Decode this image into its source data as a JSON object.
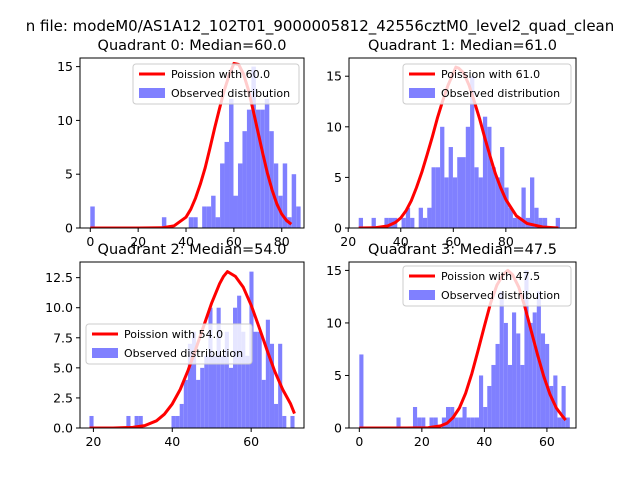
{
  "suptitle": "n file: modeM0/AS1A12_102T01_9000005812_42556cztM0_level2_quad_clean",
  "colors": {
    "poisson": "#ff0000",
    "observed": "#8080ff",
    "axis": "#000000"
  },
  "chart_data": [
    {
      "type": "bar",
      "title": "Quadrant 0: Median=60.0",
      "xlabel": "",
      "ylabel": "",
      "xlim": [
        -4.3,
        89.3
      ],
      "ylim": [
        0,
        15.8
      ],
      "xticks": [
        0,
        20,
        40,
        60,
        80
      ],
      "yticks": [
        0,
        5,
        10,
        15
      ],
      "legend": {
        "placement": "upper-right",
        "entries": [
          "Poission with 60.0",
          "Observed distribution"
        ]
      },
      "bins": {
        "start": 0,
        "width": 1.87
      },
      "series": [
        {
          "name": "Observed distribution",
          "kind": "histogram",
          "values": [
            2,
            0,
            0,
            0,
            0,
            0,
            0,
            0,
            0,
            0,
            0,
            0,
            0,
            0,
            0,
            0,
            1,
            0,
            0,
            0,
            0,
            0,
            1,
            1,
            0,
            2,
            2,
            3,
            1,
            6,
            8,
            12,
            3,
            6,
            9,
            11,
            15,
            11,
            11,
            12,
            9,
            6,
            3,
            6,
            1,
            5,
            2,
            0,
            1,
            1,
            1
          ]
        },
        {
          "name": "Poission with 60.0",
          "kind": "line",
          "x": [
            0,
            10,
            20,
            30,
            35,
            40,
            42,
            44,
            46,
            48,
            50,
            52,
            54,
            56,
            58,
            60,
            62,
            64,
            66,
            68,
            70,
            72,
            74,
            76,
            78,
            80,
            82,
            84
          ],
          "y": [
            0,
            0,
            0,
            0.02,
            0.2,
            1.0,
            1.75,
            2.8,
            4.1,
            5.6,
            7.4,
            9.3,
            11.1,
            12.8,
            14.2,
            15.3,
            15.2,
            14.3,
            12.9,
            11.0,
            9.0,
            7.0,
            5.1,
            3.5,
            2.2,
            1.3,
            0.7,
            0.35
          ]
        }
      ]
    },
    {
      "type": "bar",
      "title": "Quadrant 1: Median=61.0",
      "xlabel": "",
      "ylabel": "",
      "xlim": [
        20.3,
        106.7
      ],
      "ylim": [
        0,
        16.8
      ],
      "xticks": [
        20,
        40,
        60,
        80
      ],
      "yticks": [
        0,
        5,
        10,
        15
      ],
      "legend": {
        "placement": "upper-right",
        "entries": [
          "Poission with 61.0",
          "Observed distribution"
        ]
      },
      "bins": {
        "start": 24,
        "width": 1.63
      },
      "series": [
        {
          "name": "Observed distribution",
          "kind": "histogram",
          "values": [
            1,
            0,
            0,
            1,
            0,
            0,
            1,
            1,
            1,
            0,
            1,
            2,
            1,
            0,
            2,
            1,
            2,
            6,
            6,
            10,
            5,
            8,
            5,
            7,
            7,
            10,
            15,
            6,
            5,
            11,
            10,
            6,
            5,
            8,
            4,
            2,
            1,
            1,
            4,
            1,
            5,
            2,
            1,
            1,
            0,
            0,
            1
          ]
        },
        {
          "name": "Poission with 61.0",
          "kind": "line",
          "x": [
            24,
            30,
            35,
            38,
            40,
            42,
            44,
            46,
            48,
            50,
            52,
            54,
            56,
            58,
            60,
            61,
            62,
            64,
            66,
            68,
            70,
            72,
            74,
            76,
            78,
            80,
            84,
            88,
            94,
            100
          ],
          "y": [
            0,
            0.02,
            0.2,
            0.55,
            1.0,
            1.7,
            2.7,
            4.0,
            5.5,
            7.2,
            9.0,
            10.9,
            12.6,
            14.1,
            15.3,
            15.9,
            15.8,
            15.3,
            14.1,
            12.5,
            10.8,
            8.9,
            7.1,
            5.4,
            4.0,
            2.8,
            1.2,
            0.45,
            0.1,
            0.0
          ]
        }
      ]
    },
    {
      "type": "bar",
      "title": "Quadrant 2: Median=54.0",
      "xlabel": "",
      "ylabel": "",
      "xlim": [
        16.6,
        73.4
      ],
      "ylim": [
        0,
        13.8
      ],
      "xticks": [
        20,
        40,
        60
      ],
      "yticks": [
        0,
        2.5,
        5.0,
        7.5,
        10.0,
        12.5
      ],
      "legend": {
        "placement": "center-left",
        "entries": [
          "Poission with 54.0",
          "Observed distribution"
        ]
      },
      "bins": {
        "start": 19,
        "width": 1.04
      },
      "series": [
        {
          "name": "Observed distribution",
          "kind": "histogram",
          "values": [
            1,
            0,
            0,
            0,
            0,
            0,
            0,
            0,
            0,
            1,
            0,
            1,
            1,
            0,
            0,
            0,
            0,
            0,
            0,
            0,
            1,
            1,
            2,
            4,
            7,
            8,
            4,
            5,
            6,
            10,
            6,
            10,
            6,
            8,
            5,
            10,
            11,
            8,
            6,
            13,
            8,
            8,
            4,
            9,
            7,
            2,
            7,
            1,
            0,
            1
          ]
        },
        {
          "name": "Poission with 54.0",
          "kind": "line",
          "x": [
            19,
            25,
            30,
            33,
            36,
            38,
            40,
            42,
            44,
            46,
            48,
            50,
            52,
            53,
            54,
            56,
            58,
            60,
            62,
            64,
            66,
            68,
            70,
            71
          ],
          "y": [
            0,
            0,
            0.05,
            0.2,
            0.6,
            1.15,
            2.0,
            3.2,
            4.8,
            6.6,
            8.5,
            10.4,
            12.0,
            12.6,
            13.0,
            12.6,
            11.7,
            10.2,
            8.4,
            6.5,
            4.7,
            3.2,
            2.0,
            1.2
          ]
        }
      ]
    },
    {
      "type": "bar",
      "title": "Quadrant 3: Median=47.5",
      "xlabel": "",
      "ylabel": "",
      "xlim": [
        -3.3,
        69.3
      ],
      "ylim": [
        0,
        15.8
      ],
      "xticks": [
        0,
        20,
        40,
        60
      ],
      "yticks": [
        0,
        5,
        10,
        15
      ],
      "legend": {
        "placement": "upper-right",
        "entries": [
          "Poission with 47.5",
          "Observed distribution"
        ]
      },
      "bins": {
        "start": 0,
        "width": 1.32
      },
      "series": [
        {
          "name": "Observed distribution",
          "kind": "histogram",
          "values": [
            7,
            0,
            0,
            0,
            0,
            0,
            0,
            0,
            0,
            1,
            0,
            0,
            0,
            2,
            1,
            1,
            0,
            1,
            1,
            0,
            1,
            2,
            2,
            1,
            1,
            2,
            1,
            1,
            1,
            5,
            2,
            4,
            6,
            8,
            13,
            10,
            6,
            11,
            9,
            6,
            15,
            10,
            11,
            13,
            9,
            8,
            4,
            5,
            1,
            4,
            1
          ]
        },
        {
          "name": "Poission with 47.5",
          "kind": "line",
          "x": [
            0,
            15,
            22,
            26,
            28,
            30,
            32,
            34,
            36,
            38,
            40,
            42,
            44,
            46,
            47.5,
            49,
            51,
            53,
            55,
            57,
            59,
            61,
            63,
            65,
            66
          ],
          "y": [
            0,
            0,
            0.03,
            0.2,
            0.45,
            1.0,
            1.9,
            3.3,
            5.2,
            7.4,
            9.7,
            11.9,
            13.6,
            14.6,
            15.0,
            14.6,
            13.4,
            11.5,
            9.2,
            7.0,
            4.9,
            3.2,
            1.9,
            1.1,
            0.75
          ]
        }
      ]
    }
  ]
}
